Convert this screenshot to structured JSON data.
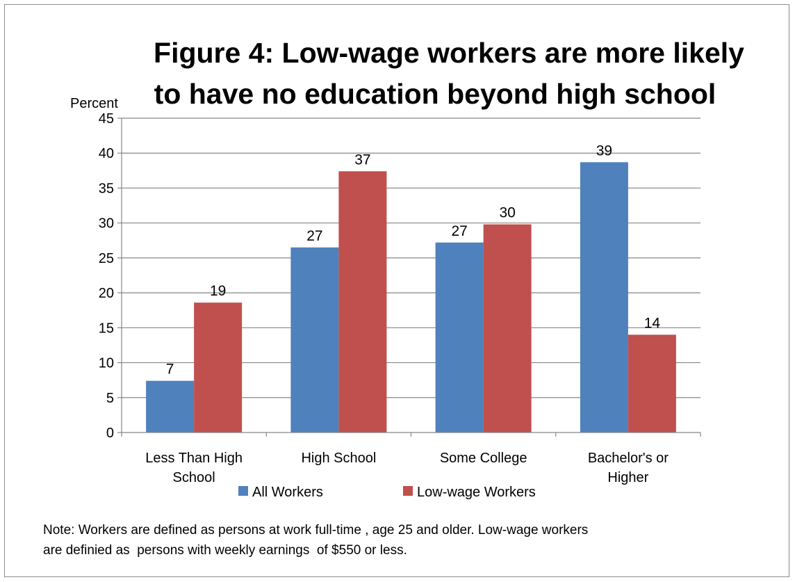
{
  "chart_data": {
    "type": "bar",
    "title_lines": [
      "Figure 4: Low-wage workers are more likely",
      "to have no education beyond high school"
    ],
    "ylabel": "Percent",
    "xlabel": "",
    "ylim": [
      0,
      45
    ],
    "yticks": [
      "0",
      "5",
      "10",
      "15",
      "20",
      "25",
      "30",
      "35",
      "40",
      "45"
    ],
    "grid": true,
    "legend_position": "bottom",
    "categories": [
      [
        "Less Than High",
        "School"
      ],
      [
        "High School"
      ],
      [
        "Some College"
      ],
      [
        "Bachelor's or",
        "Higher"
      ]
    ],
    "series": [
      {
        "name": "All Workers",
        "color": "#4F81BD",
        "values": [
          7.4,
          26.5,
          27.2,
          38.7
        ],
        "labels": [
          "7",
          "27",
          "27",
          "39"
        ]
      },
      {
        "name": "Low-wage Workers",
        "color": "#C0504D",
        "values": [
          18.6,
          37.4,
          29.8,
          14.0
        ],
        "labels": [
          "19",
          "37",
          "30",
          "14"
        ]
      }
    ]
  },
  "note": "Note: Workers are defined as persons at work full-time , age 25 and older. Low-wage workers\nare definied as  persons with weekly earnings  of $550 or less."
}
